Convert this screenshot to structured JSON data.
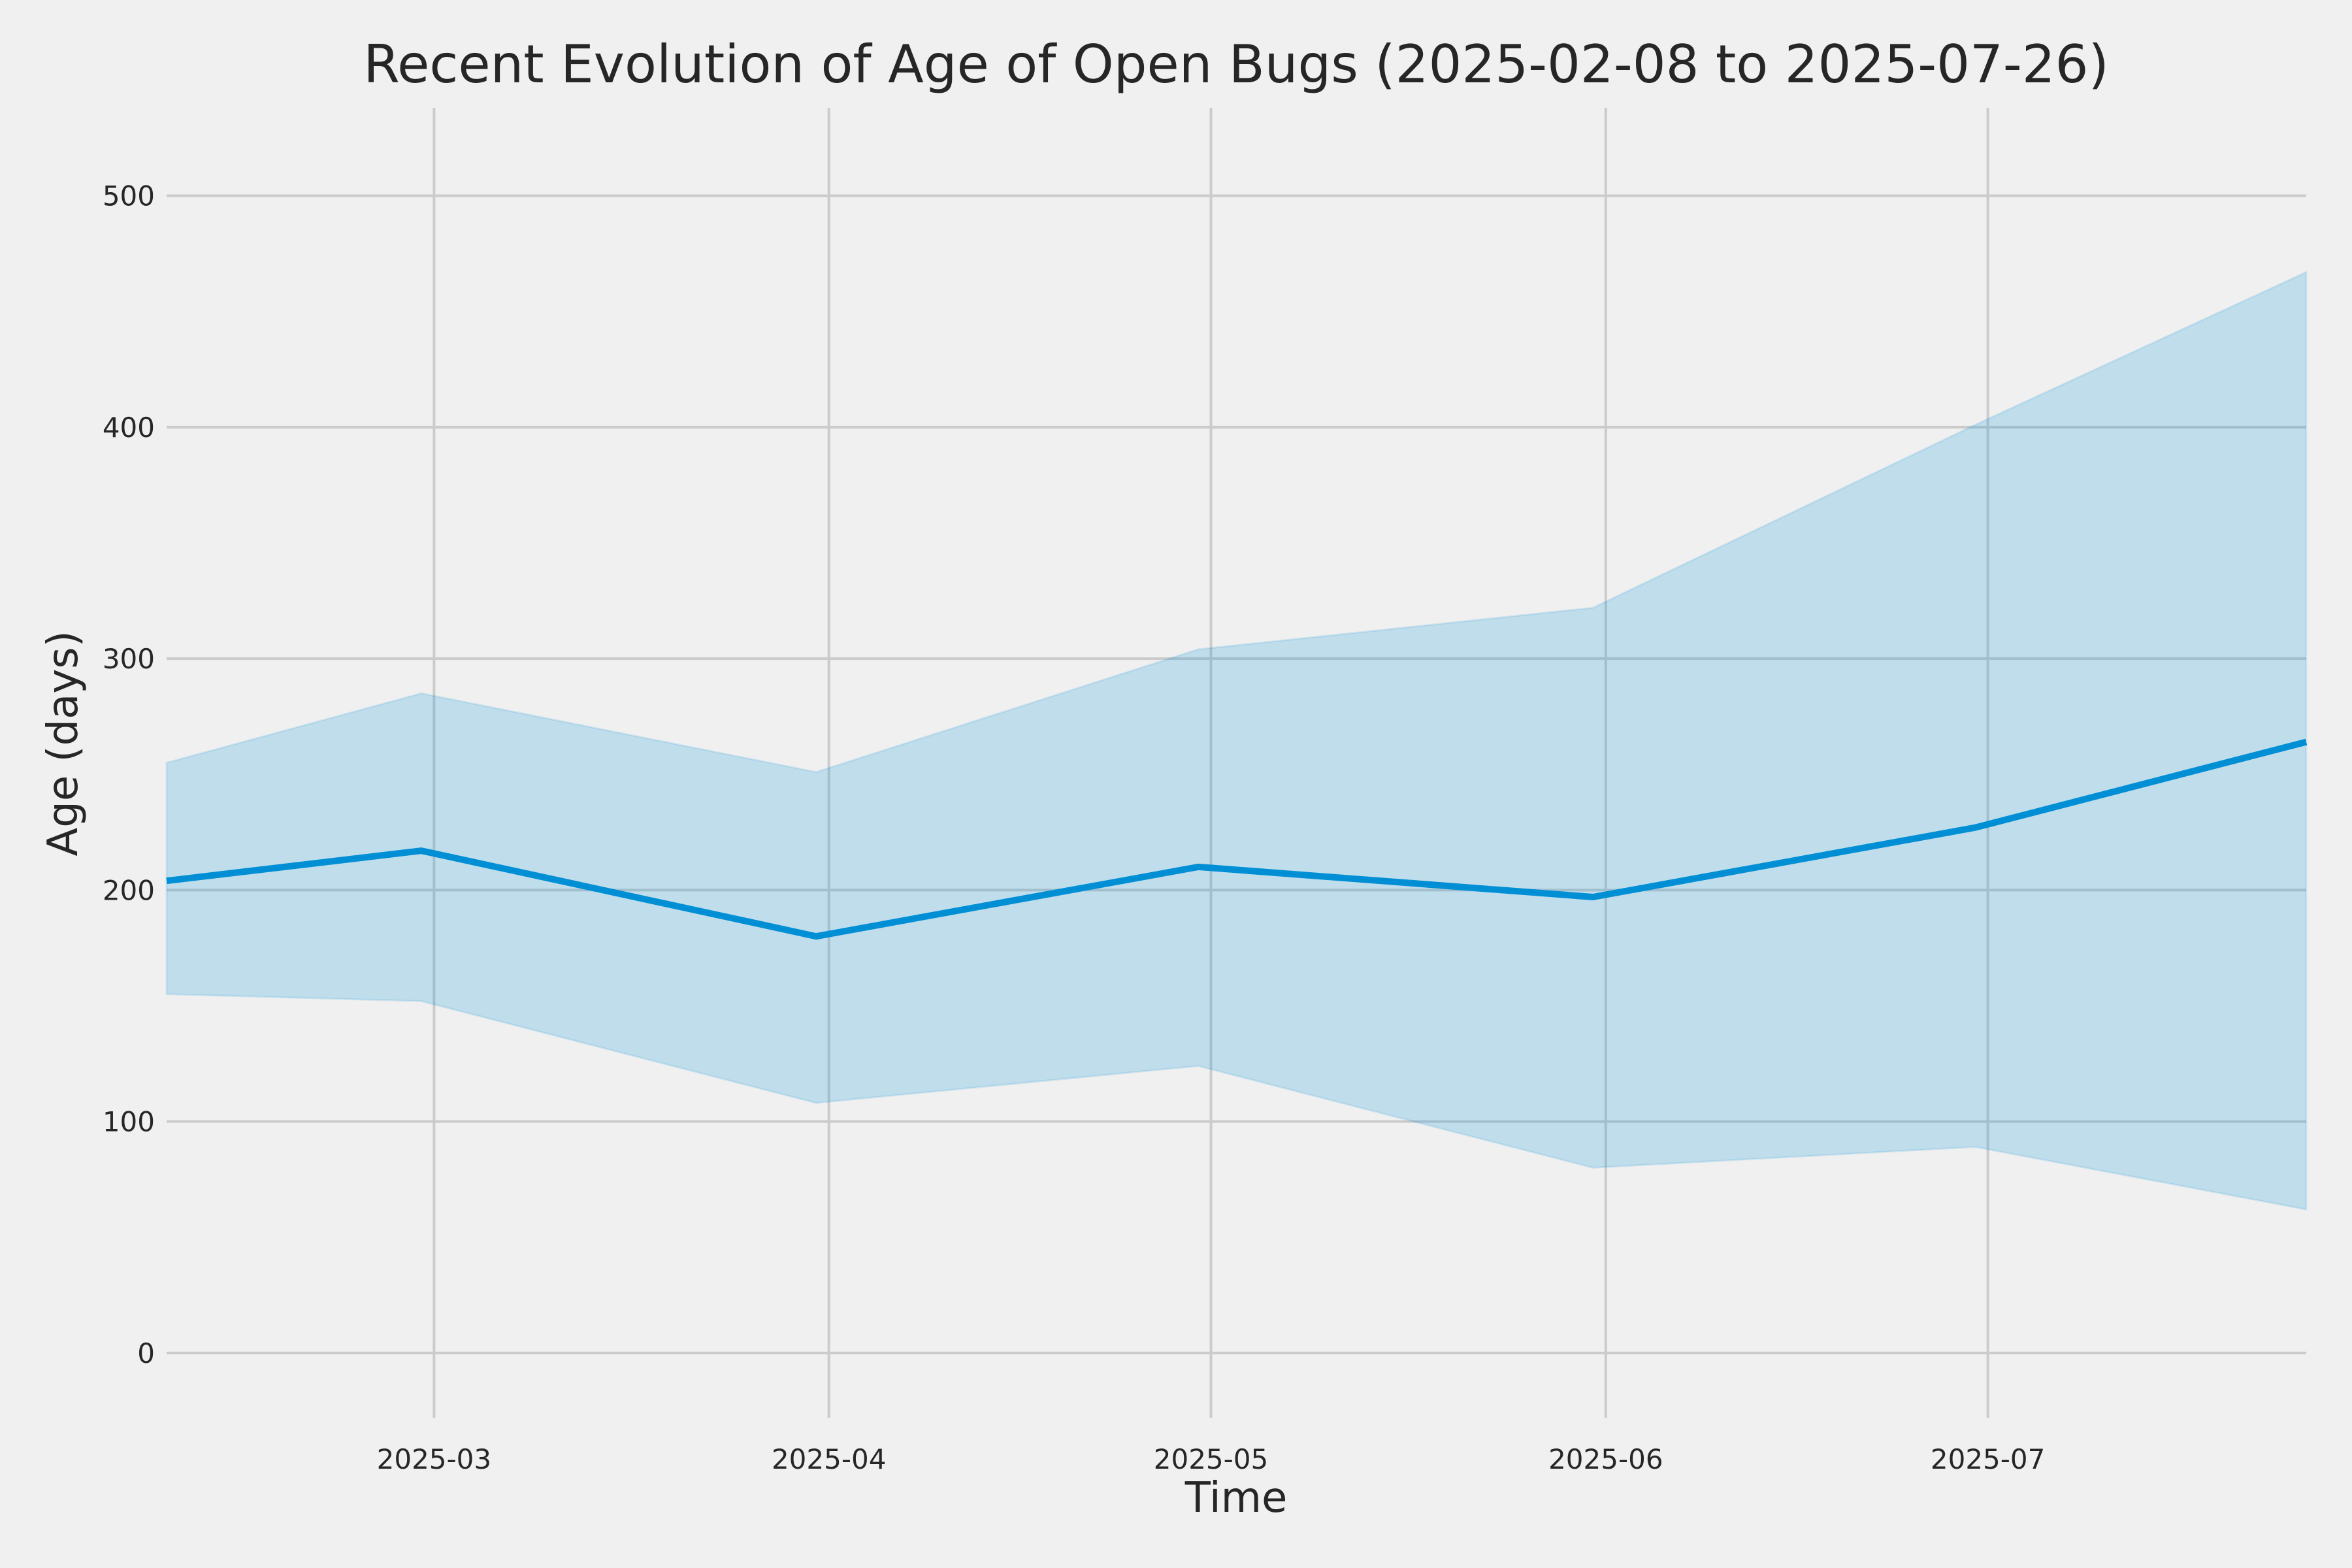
{
  "chart_data": {
    "type": "line",
    "title": "Recent Evolution of Age of Open Bugs (2025-02-08 to 2025-07-26)",
    "xlabel": "Time",
    "ylabel": "Age (days)",
    "xlim": [
      "2025-02-08",
      "2025-07-26"
    ],
    "ylim": [
      -28,
      538
    ],
    "x_ticks": [
      "2025-03-01",
      "2025-04-01",
      "2025-05-01",
      "2025-06-01",
      "2025-07-01"
    ],
    "x_tick_labels": [
      "2025-03",
      "2025-04",
      "2025-05",
      "2025-06",
      "2025-07"
    ],
    "y_ticks": [
      0,
      100,
      200,
      300,
      400,
      500
    ],
    "y_tick_labels": [
      "0",
      "100",
      "200",
      "300",
      "400",
      "500"
    ],
    "grid": true,
    "legend": "none",
    "colors": {
      "line": "#008fd5",
      "band": "#008fd5",
      "background": "#f0f0f0",
      "grid": "#cbcbcb",
      "text": "#262626"
    },
    "series": [
      {
        "x": [
          "2025-02-08",
          "2025-02-28",
          "2025-03-31",
          "2025-04-30",
          "2025-05-31",
          "2025-06-30",
          "2025-07-26"
        ],
        "values": [
          204,
          217,
          180,
          210,
          197,
          227,
          264
        ],
        "upper": [
          255,
          285,
          251,
          304,
          322,
          401,
          467
        ],
        "lower": [
          155,
          152,
          108,
          124,
          80,
          89,
          62
        ]
      }
    ]
  }
}
